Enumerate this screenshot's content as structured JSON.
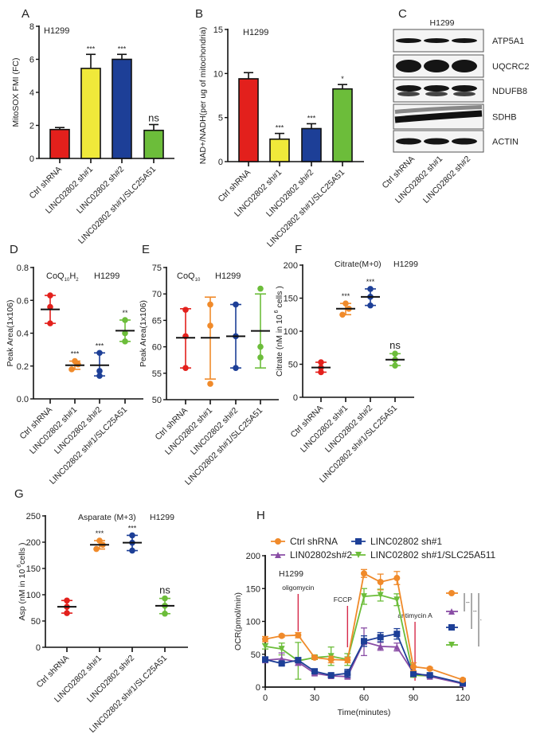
{
  "colors": {
    "ctrl": "#e3201c",
    "sh1": "#f0e93a",
    "sh2": "#1d3f97",
    "rescue": "#6cbd3a",
    "orange": "#f08a2a",
    "purple": "#8a4ea6",
    "arrow": "#d62a4a"
  },
  "chart_data": [
    {
      "panel": "A",
      "type": "bar",
      "title": "H1299",
      "ylabel": "MitoSOX FMI (FC)",
      "ylim": [
        0,
        8
      ],
      "yticks": [
        0,
        2,
        4,
        6,
        8
      ],
      "categories": [
        "Ctrl shRNA",
        "LINC02802 sh#1",
        "LINC02802 sh#2",
        "LINC02802 sh#1/SLC25A51"
      ],
      "values": [
        1.75,
        5.45,
        6.0,
        1.7
      ],
      "error_upper": [
        1.87,
        6.3,
        6.3,
        2.05
      ],
      "significance": [
        "",
        "***",
        "***",
        "ns"
      ],
      "bar_colors": [
        "ctrl",
        "sh1",
        "sh2",
        "rescue"
      ]
    },
    {
      "panel": "B",
      "type": "bar",
      "title": "H1299",
      "ylabel": "NAD+/NADH(per ug of mitochondria)",
      "ylim": [
        0,
        15
      ],
      "yticks": [
        0,
        5,
        10,
        15
      ],
      "categories": [
        "Ctrl shRNA",
        "LINC02802 sh#1",
        "LINC02802 sh#2",
        "LINC02802 sh#1/SLC25A51"
      ],
      "values": [
        9.4,
        2.55,
        3.75,
        8.25
      ],
      "error_upper": [
        10.1,
        3.2,
        4.3,
        8.75
      ],
      "significance": [
        "",
        "***",
        "***",
        "*"
      ],
      "bar_colors": [
        "ctrl",
        "sh1",
        "sh2",
        "rescue"
      ]
    },
    {
      "panel": "C",
      "type": "blot",
      "title": "H1299",
      "lanes": [
        "Ctrl shRNA",
        "LINC02802 sh#1",
        "LINC02802 sh#2"
      ],
      "proteins": [
        "ATP5A1",
        "UQCRC2",
        "NDUFB8",
        "SDHB",
        "ACTIN"
      ]
    },
    {
      "panel": "D",
      "type": "scatter",
      "title": "H1299",
      "subtitle_main": "CoQ",
      "subtitle_sub1": "10",
      "subtitle_mid": "H",
      "subtitle_sub2": "2",
      "ylabel": "Peak Area(1x106)",
      "ylim": [
        0,
        0.8
      ],
      "yticks": [
        "0.0",
        "0.2",
        "0.4",
        "0.6",
        "0.8"
      ],
      "categories": [
        "Ctrl shRNA",
        "LINC02802 sh#1",
        "LINC02802 sh#2",
        "LINC02802 sh#1/SLC25A51"
      ],
      "points": [
        [
          0.63,
          0.56,
          0.46
        ],
        [
          0.23,
          0.21,
          0.18
        ],
        [
          0.28,
          0.17,
          0.14
        ],
        [
          0.48,
          0.4,
          0.35
        ]
      ],
      "mean": [
        0.545,
        0.205,
        0.205,
        0.415
      ],
      "error": [
        [
          0.46,
          0.63
        ],
        [
          0.18,
          0.23
        ],
        [
          0.14,
          0.28
        ],
        [
          0.35,
          0.48
        ]
      ],
      "significance": [
        "",
        "***",
        "***",
        "**"
      ],
      "point_colors": [
        "ctrl",
        "orange",
        "sh2",
        "rescue"
      ]
    },
    {
      "panel": "E",
      "type": "scatter",
      "title": "H1299",
      "subtitle_main": "CoQ",
      "subtitle_sub1": "10",
      "ylabel": "Peak Area(1x106)",
      "ylim": [
        50,
        75
      ],
      "yticks": [
        "50",
        "55",
        "60",
        "65",
        "70",
        "75"
      ],
      "categories": [
        "Ctrl shRNA",
        "LINC02802 sh#1",
        "LINC02802 sh#2",
        "LINC02802 sh#1/SLC25A51"
      ],
      "points": [
        [
          67,
          62,
          56
        ],
        [
          68,
          64,
          53
        ],
        [
          68,
          62,
          56
        ],
        [
          71,
          60,
          58
        ]
      ],
      "mean": [
        61.7,
        61.7,
        62,
        63
      ],
      "error": [
        [
          56,
          67.2
        ],
        [
          53.9,
          69.4
        ],
        [
          56,
          68
        ],
        [
          56,
          70
        ]
      ],
      "significance": [
        "",
        "",
        "",
        ""
      ],
      "point_colors": [
        "ctrl",
        "orange",
        "sh2",
        "rescue"
      ]
    },
    {
      "panel": "F",
      "type": "scatter",
      "title": "H1299",
      "subtitle_main": "Citrate(M+0)",
      "ylabel": "Citrate (nM in 10",
      "ylabel_sup": "6",
      "ylabel_end": " cells )",
      "ylim": [
        0,
        200
      ],
      "yticks": [
        "0",
        "50",
        "100",
        "150",
        "200"
      ],
      "categories": [
        "Ctrl shRNA",
        "LINC02802 sh#1",
        "LINC02802 sh#2",
        "LINC02802 sh#1/SLC25A51"
      ],
      "points": [
        [
          53,
          45,
          38
        ],
        [
          142,
          134,
          125
        ],
        [
          164,
          152,
          139
        ],
        [
          66,
          57,
          48
        ]
      ],
      "mean": [
        45,
        134,
        152,
        57
      ],
      "error": [
        [
          38,
          53
        ],
        [
          125,
          142
        ],
        [
          139,
          164
        ],
        [
          48,
          66
        ]
      ],
      "significance": [
        "",
        "***",
        "***",
        "ns"
      ],
      "point_colors": [
        "ctrl",
        "orange",
        "sh2",
        "rescue"
      ]
    },
    {
      "panel": "G",
      "type": "scatter",
      "title": "H1299",
      "subtitle_main": "Asparate (M+3)",
      "ylabel": "Asp (nM in 10",
      "ylabel_sup": "6",
      "ylabel_end": "cells )",
      "ylim": [
        0,
        250
      ],
      "yticks": [
        "0",
        "50",
        "100",
        "150",
        "200",
        "250"
      ],
      "categories": [
        "Ctrl shRNA",
        "LINC02802 sh#1",
        "LINC02802 sh#2",
        "LINC02802 sh#1/SLC25A51"
      ],
      "points": [
        [
          89,
          77,
          65
        ],
        [
          203,
          195,
          187
        ],
        [
          213,
          199,
          184
        ],
        [
          93,
          79,
          64
        ]
      ],
      "mean": [
        77,
        195,
        199,
        79
      ],
      "error": [
        [
          65,
          89
        ],
        [
          187,
          203
        ],
        [
          184,
          213
        ],
        [
          64,
          93
        ]
      ],
      "significance": [
        "",
        "***",
        "***",
        "ns"
      ],
      "point_colors": [
        "ctrl",
        "orange",
        "sh2",
        "rescue"
      ]
    },
    {
      "panel": "H",
      "type": "line",
      "title": "H1299",
      "xlabel": "Time(minutes)",
      "ylabel": "OCR(pmol/min)",
      "xlim": [
        0,
        120
      ],
      "ylim": [
        0,
        200
      ],
      "xticks": [
        0,
        30,
        60,
        90,
        120
      ],
      "yticks": [
        0,
        50,
        100,
        150,
        200
      ],
      "x": [
        0,
        10,
        20,
        30,
        40,
        50,
        60,
        70,
        80,
        90,
        100,
        120
      ],
      "series": [
        {
          "name": "Ctrl shRNA",
          "color": "orange",
          "marker": "circle",
          "values": [
            73,
            78,
            79,
            45,
            42,
            41,
            173,
            160,
            166,
            31,
            28,
            11
          ],
          "err": [
            4,
            2,
            4,
            2,
            5,
            4,
            6,
            12,
            10,
            6,
            2,
            2
          ]
        },
        {
          "name": "LINC02802 sh#1",
          "color": "sh2",
          "marker": "square",
          "values": [
            42,
            36,
            41,
            24,
            18,
            21,
            70,
            76,
            81,
            20,
            18,
            6
          ],
          "err": [
            4,
            3,
            4,
            3,
            3,
            6,
            8,
            7,
            8,
            3,
            2,
            1
          ]
        },
        {
          "name": "LIN02802sh#2",
          "color": "purple",
          "marker": "triangle",
          "values": [
            41,
            43,
            38,
            21,
            17,
            16,
            69,
            62,
            61,
            22,
            16,
            5
          ],
          "err": [
            3,
            9,
            5,
            3,
            2,
            3,
            21,
            6,
            6,
            3,
            2,
            1
          ]
        },
        {
          "name": "LINC02802 sh#1/SLC25A511",
          "color": "rescue",
          "marker": "triangle-down",
          "values": [
            62,
            58,
            40,
            45,
            47,
            42,
            138,
            140,
            133,
            18,
            17,
            5
          ],
          "err": [
            4,
            9,
            28,
            3,
            14,
            9,
            12,
            9,
            9,
            3,
            2,
            1
          ]
        }
      ],
      "annotations": [
        {
          "label": "oligomycin",
          "x": 20
        },
        {
          "label": "FCCP",
          "x": 50
        },
        {
          "label": "antimycin A",
          "x": 91
        }
      ],
      "significance_brackets": [
        "***",
        "***",
        "*"
      ]
    }
  ]
}
